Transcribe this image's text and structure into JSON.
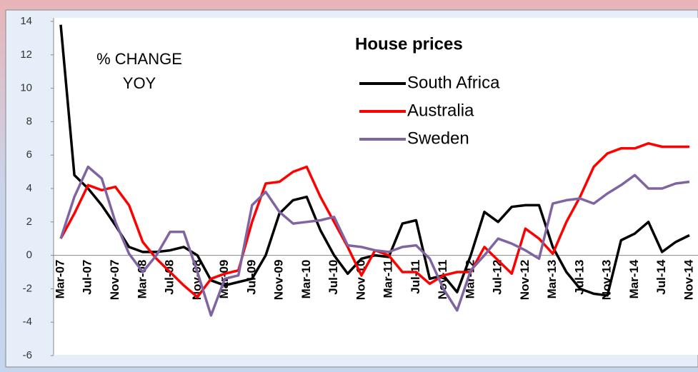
{
  "chart_data": {
    "type": "line",
    "title": "House prices",
    "annotation": [
      "% CHANGE",
      "YOY"
    ],
    "categories": [
      "Mar-07",
      null,
      "Jul-07",
      null,
      "Nov-07",
      null,
      "Mar-08",
      null,
      "Jul-08",
      null,
      "Nov-08",
      null,
      "Mar-09",
      null,
      "Jul-09",
      null,
      "Nov-09",
      null,
      "Mar-10",
      null,
      "Jul-10",
      null,
      "Nov-10",
      null,
      "Mar-11",
      null,
      "Jul-11",
      null,
      "Nov-11",
      null,
      "Mar-12",
      null,
      "Jul-12",
      null,
      "Nov-12",
      null,
      "Mar-13",
      null,
      "Jul-13",
      null,
      "Nov-13",
      null,
      "Mar-14",
      null,
      "Jul-14",
      null,
      "Nov-14"
    ],
    "series": [
      {
        "name": "South Africa",
        "color": "#000000",
        "values": [
          13.8,
          4.8,
          4,
          3,
          1.8,
          0.5,
          0.2,
          0.2,
          0.3,
          0.5,
          0,
          -1.5,
          -1.8,
          -1.6,
          -1.4,
          0,
          2.5,
          3.3,
          3.5,
          1.5,
          0,
          -1.1,
          -0.2,
          0,
          -0.1,
          1.9,
          2.1,
          -1.4,
          -1.2,
          -2.2,
          0,
          2.6,
          2,
          2.9,
          3,
          3,
          0.5,
          -1,
          -2,
          -2.3,
          -2.4,
          0.9,
          1.3,
          2,
          0.2,
          0.8,
          1.2
        ]
      },
      {
        "name": "Australia",
        "color": "#ff0000",
        "values": [
          1,
          2.5,
          4.2,
          3.9,
          4.1,
          3,
          0.8,
          -0.2,
          -1,
          -1.8,
          -2.5,
          -1.4,
          -1.1,
          -0.9,
          2,
          4.3,
          4.4,
          5,
          5.3,
          3.5,
          2,
          0.5,
          -1.2,
          0.3,
          0,
          -1,
          -1,
          -1.7,
          -1.2,
          -1,
          -1,
          0.5,
          -0.3,
          -1.1,
          1.6,
          1,
          0.1,
          2,
          3.5,
          5.3,
          6.1,
          6.4,
          6.4,
          6.7,
          6.5,
          6.5,
          6.5
        ]
      },
      {
        "name": "Sweden",
        "color": "#8064a2",
        "values": [
          1,
          3.5,
          5.3,
          4.6,
          2,
          0.1,
          -1,
          0,
          1.4,
          1.4,
          -1,
          -3.6,
          -1.4,
          -1.2,
          3,
          3.8,
          2.6,
          1.9,
          2,
          2.1,
          2.3,
          0.6,
          0.5,
          0.3,
          0.2,
          0.5,
          0.6,
          -0.2,
          -2,
          -3.3,
          -0.9,
          0,
          1,
          0.7,
          0.3,
          -0.2,
          3.1,
          3.3,
          3.4,
          3.1,
          3.7,
          4.2,
          4.8,
          4,
          4,
          4.3,
          4.4
        ]
      }
    ],
    "ylim": [
      -6,
      14
    ],
    "yticks": [
      -6,
      -4,
      -2,
      0,
      2,
      4,
      6,
      8,
      10,
      12,
      14
    ],
    "grid": false
  }
}
